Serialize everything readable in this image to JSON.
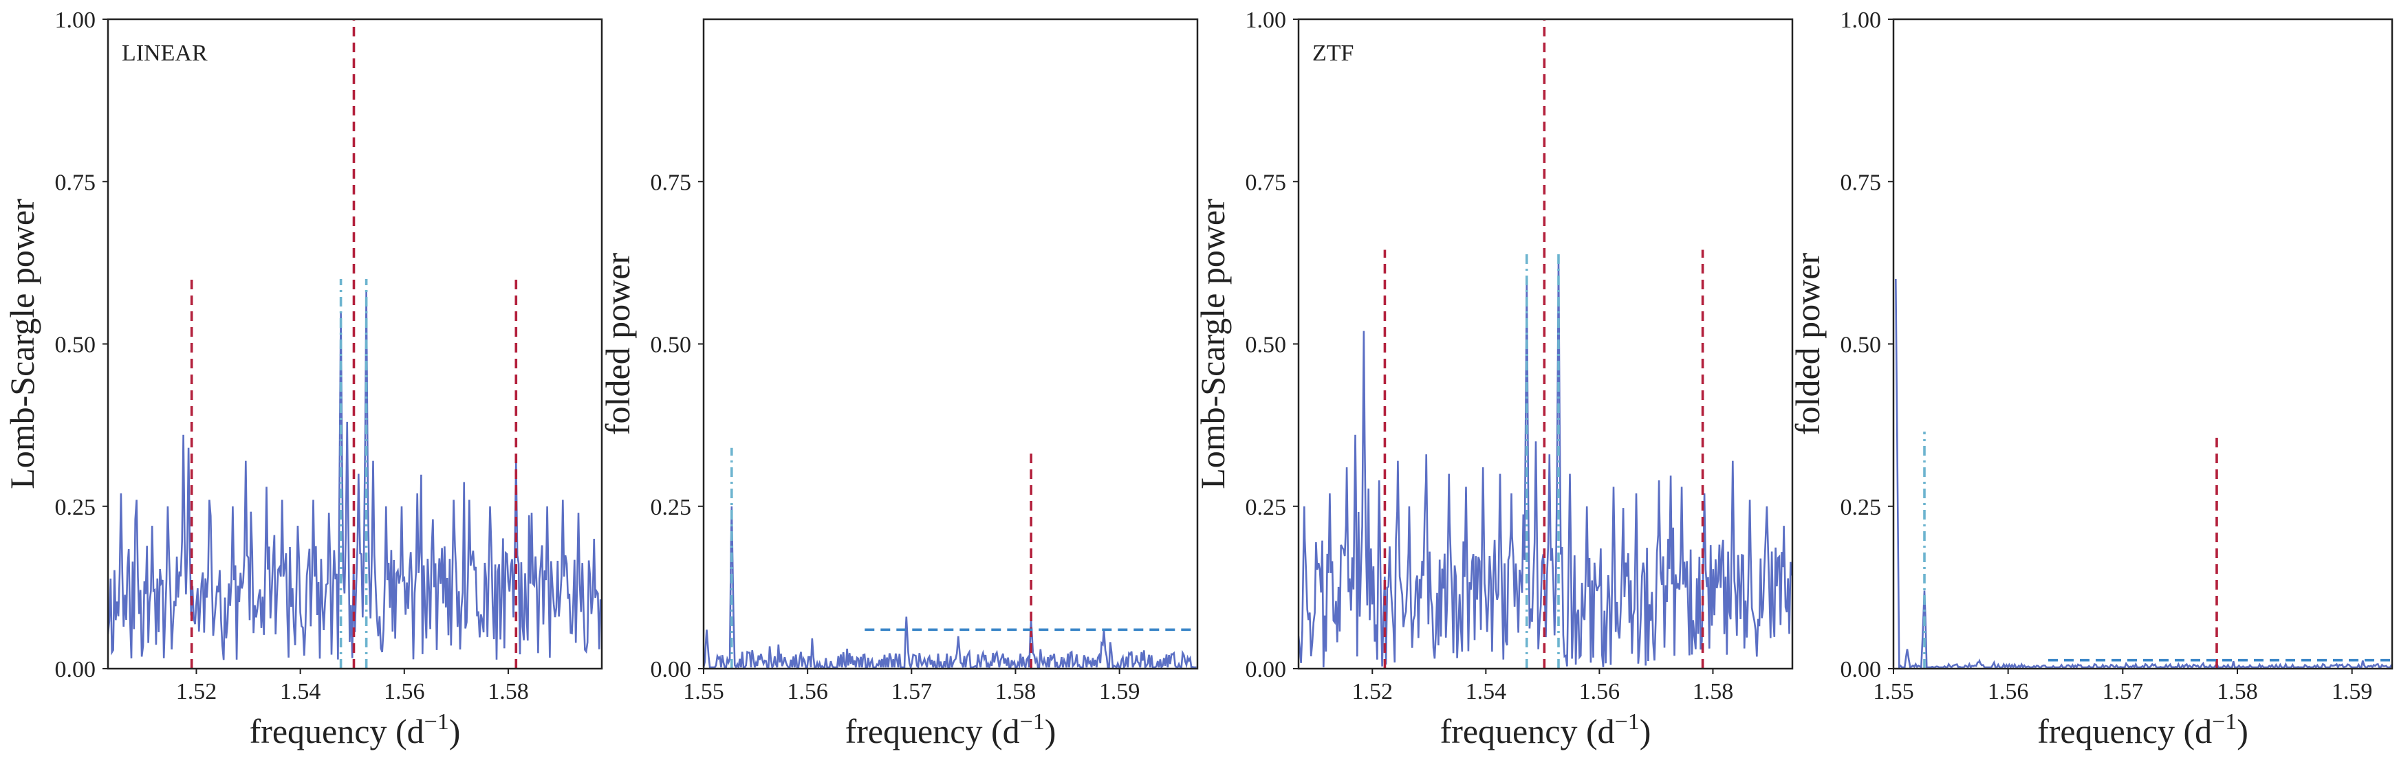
{
  "chart_data": [
    {
      "type": "line",
      "panel_label": "LINEAR",
      "xlabel": "frequency (d",
      "xlabel_sup": "−1",
      "xlabel_tail": ")",
      "ylabel": "Lomb-Scargle power",
      "xlim": [
        1.503,
        1.598
      ],
      "ylim": [
        0,
        1
      ],
      "xticks": [
        1.52,
        1.54,
        1.56,
        1.58
      ],
      "xtick_labels": [
        "1.52",
        "1.54",
        "1.56",
        "1.58"
      ],
      "yticks": [
        0.0,
        0.25,
        0.5,
        0.75,
        1.0
      ],
      "ytick_labels": [
        "0.00",
        "0.25",
        "0.50",
        "0.75",
        "1.00"
      ],
      "series": [
        {
          "style": "solid",
          "color": "#5b6fc4",
          "noise": {
            "from": 1.503,
            "to": 1.598,
            "step": 0.00025,
            "base": 0.1,
            "amp": 0.09,
            "seed": 11
          },
          "peaks": [
            {
              "x": 1.5055,
              "y": 0.27
            },
            {
              "x": 1.5085,
              "y": 0.26
            },
            {
              "x": 1.5115,
              "y": 0.22
            },
            {
              "x": 1.5145,
              "y": 0.25
            },
            {
              "x": 1.5175,
              "y": 0.36
            },
            {
              "x": 1.5185,
              "y": 0.34
            },
            {
              "x": 1.5225,
              "y": 0.26
            },
            {
              "x": 1.527,
              "y": 0.25
            },
            {
              "x": 1.5295,
              "y": 0.32
            },
            {
              "x": 1.5335,
              "y": 0.28
            },
            {
              "x": 1.5365,
              "y": 0.26
            },
            {
              "x": 1.5395,
              "y": 0.22
            },
            {
              "x": 1.5425,
              "y": 0.26
            },
            {
              "x": 1.5455,
              "y": 0.24
            },
            {
              "x": 1.5478,
              "y": 0.55
            },
            {
              "x": 1.549,
              "y": 0.38
            },
            {
              "x": 1.5512,
              "y": 0.3
            },
            {
              "x": 1.5527,
              "y": 0.58
            },
            {
              "x": 1.554,
              "y": 0.32
            },
            {
              "x": 1.5565,
              "y": 0.25
            },
            {
              "x": 1.5595,
              "y": 0.25
            },
            {
              "x": 1.5625,
              "y": 0.27
            },
            {
              "x": 1.5655,
              "y": 0.23
            },
            {
              "x": 1.5695,
              "y": 0.26
            },
            {
              "x": 1.5725,
              "y": 0.26
            },
            {
              "x": 1.5765,
              "y": 0.25
            },
            {
              "x": 1.5815,
              "y": 0.32
            },
            {
              "x": 1.5845,
              "y": 0.24
            },
            {
              "x": 1.5875,
              "y": 0.25
            },
            {
              "x": 1.5905,
              "y": 0.26
            },
            {
              "x": 1.5935,
              "y": 0.24
            },
            {
              "x": 1.5965,
              "y": 0.2
            }
          ]
        }
      ],
      "vlines": [
        {
          "x": 1.5191,
          "y0": 0,
          "y1": 0.6,
          "color": "#b3203c",
          "dash": "dashed"
        },
        {
          "x": 1.5503,
          "y0": 0,
          "y1": 1.0,
          "color": "#b3203c",
          "dash": "dashed"
        },
        {
          "x": 1.5815,
          "y0": 0,
          "y1": 0.6,
          "color": "#b3203c",
          "dash": "dashed"
        },
        {
          "x": 1.5478,
          "y0": 0,
          "y1": 0.6,
          "color": "#6cb4cf",
          "dash": "dashdot"
        },
        {
          "x": 1.5527,
          "y0": 0,
          "y1": 0.6,
          "color": "#6cb4cf",
          "dash": "dashdot"
        }
      ],
      "hlines": []
    },
    {
      "type": "line",
      "panel_label": "",
      "xlabel": "frequency (d",
      "xlabel_sup": "−1",
      "xlabel_tail": ")",
      "ylabel": "folded power",
      "xlim": [
        1.55,
        1.5975
      ],
      "ylim": [
        0,
        1
      ],
      "xticks": [
        1.55,
        1.56,
        1.57,
        1.58,
        1.59
      ],
      "xtick_labels": [
        "1.55",
        "1.56",
        "1.57",
        "1.58",
        "1.59"
      ],
      "yticks": [
        0.0,
        0.25,
        0.5,
        0.75
      ],
      "ytick_labels": [
        "0.00",
        "0.25",
        "0.50",
        "0.75"
      ],
      "series": [
        {
          "style": "solid",
          "color": "#5b6fc4",
          "noise": {
            "from": 1.55,
            "to": 1.5975,
            "step": 0.00012,
            "base": 0.008,
            "amp": 0.018,
            "seed": 23
          },
          "peaks": [
            {
              "x": 1.5503,
              "y": 0.06
            },
            {
              "x": 1.5527,
              "y": 0.25
            },
            {
              "x": 1.5695,
              "y": 0.08
            },
            {
              "x": 1.5815,
              "y": 0.075
            },
            {
              "x": 1.5745,
              "y": 0.05
            },
            {
              "x": 1.5885,
              "y": 0.06
            }
          ]
        }
      ],
      "vlines": [
        {
          "x": 1.5527,
          "y0": 0,
          "y1": 0.34,
          "color": "#6cb4cf",
          "dash": "dashdot"
        },
        {
          "x": 1.5815,
          "y0": 0,
          "y1": 0.34,
          "color": "#b3203c",
          "dash": "dashed"
        }
      ],
      "hlines": [
        {
          "y": 0.06,
          "x0": 1.5655,
          "x1": 1.5975,
          "color": "#3a86c8",
          "dash": "dashed"
        }
      ]
    },
    {
      "type": "line",
      "panel_label": "ZTF",
      "xlabel": "frequency (d",
      "xlabel_sup": "−1",
      "xlabel_tail": ")",
      "ylabel": "Lomb-Scargle power",
      "xlim": [
        1.507,
        1.594
      ],
      "ylim": [
        0,
        1
      ],
      "xticks": [
        1.52,
        1.54,
        1.56,
        1.58
      ],
      "xtick_labels": [
        "1.52",
        "1.54",
        "1.56",
        "1.58"
      ],
      "yticks": [
        0.0,
        0.25,
        0.5,
        0.75,
        1.0
      ],
      "ytick_labels": [
        "0.00",
        "0.25",
        "0.50",
        "0.75",
        "1.00"
      ],
      "series": [
        {
          "style": "solid",
          "color": "#5b6fc4",
          "noise": {
            "from": 1.507,
            "to": 1.594,
            "step": 0.00022,
            "base": 0.1,
            "amp": 0.1,
            "seed": 37
          },
          "peaks": [
            {
              "x": 1.508,
              "y": 0.25
            },
            {
              "x": 1.5125,
              "y": 0.27
            },
            {
              "x": 1.5155,
              "y": 0.31
            },
            {
              "x": 1.517,
              "y": 0.36
            },
            {
              "x": 1.5185,
              "y": 0.52
            },
            {
              "x": 1.5212,
              "y": 0.29
            },
            {
              "x": 1.5245,
              "y": 0.32
            },
            {
              "x": 1.5265,
              "y": 0.25
            },
            {
              "x": 1.5295,
              "y": 0.33
            },
            {
              "x": 1.5335,
              "y": 0.3
            },
            {
              "x": 1.5365,
              "y": 0.28
            },
            {
              "x": 1.5395,
              "y": 0.31
            },
            {
              "x": 1.5425,
              "y": 0.3
            },
            {
              "x": 1.5445,
              "y": 0.27
            },
            {
              "x": 1.5472,
              "y": 0.6
            },
            {
              "x": 1.5488,
              "y": 0.35
            },
            {
              "x": 1.5512,
              "y": 0.33
            },
            {
              "x": 1.5528,
              "y": 0.63
            },
            {
              "x": 1.5548,
              "y": 0.3
            },
            {
              "x": 1.5578,
              "y": 0.25
            },
            {
              "x": 1.5625,
              "y": 0.28
            },
            {
              "x": 1.5665,
              "y": 0.27
            },
            {
              "x": 1.5705,
              "y": 0.29
            },
            {
              "x": 1.5745,
              "y": 0.28
            },
            {
              "x": 1.5785,
              "y": 0.27
            },
            {
              "x": 1.5835,
              "y": 0.32
            },
            {
              "x": 1.5865,
              "y": 0.26
            },
            {
              "x": 1.5895,
              "y": 0.25
            },
            {
              "x": 1.5925,
              "y": 0.22
            }
          ]
        }
      ],
      "vlines": [
        {
          "x": 1.5222,
          "y0": 0,
          "y1": 0.645,
          "color": "#b3203c",
          "dash": "dashed"
        },
        {
          "x": 1.5503,
          "y0": 0,
          "y1": 1.0,
          "color": "#b3203c",
          "dash": "dashed"
        },
        {
          "x": 1.5782,
          "y0": 0,
          "y1": 0.645,
          "color": "#b3203c",
          "dash": "dashed"
        },
        {
          "x": 1.5472,
          "y0": 0,
          "y1": 0.645,
          "color": "#6cb4cf",
          "dash": "dashdot"
        },
        {
          "x": 1.5528,
          "y0": 0,
          "y1": 0.645,
          "color": "#6cb4cf",
          "dash": "dashdot"
        }
      ],
      "hlines": []
    },
    {
      "type": "line",
      "panel_label": "",
      "xlabel": "frequency (d",
      "xlabel_sup": "−1",
      "xlabel_tail": ")",
      "ylabel": "folded power",
      "xlim": [
        1.55,
        1.5935
      ],
      "ylim": [
        0,
        1
      ],
      "xticks": [
        1.55,
        1.56,
        1.57,
        1.58,
        1.59
      ],
      "xtick_labels": [
        "1.55",
        "1.56",
        "1.57",
        "1.58",
        "1.59"
      ],
      "yticks": [
        0.0,
        0.25,
        0.5,
        0.75,
        1.0
      ],
      "ytick_labels": [
        "0.00",
        "0.25",
        "0.50",
        "0.75",
        "1.00"
      ],
      "series": [
        {
          "style": "solid",
          "color": "#5b6fc4",
          "noise": {
            "from": 1.5505,
            "to": 1.5935,
            "step": 0.00012,
            "base": 0.002,
            "amp": 0.005,
            "seed": 51
          },
          "peaks": [
            {
              "x": 1.5502,
              "y": 0.6
            },
            {
              "x": 1.5512,
              "y": 0.03
            },
            {
              "x": 1.5527,
              "y": 0.12
            },
            {
              "x": 1.5575,
              "y": 0.012
            }
          ]
        }
      ],
      "vlines": [
        {
          "x": 1.5527,
          "y0": 0,
          "y1": 0.365,
          "color": "#6cb4cf",
          "dash": "dashdot"
        },
        {
          "x": 1.5782,
          "y0": 0,
          "y1": 0.365,
          "color": "#b3203c",
          "dash": "dashed"
        }
      ],
      "hlines": [
        {
          "y": 0.013,
          "x0": 1.5635,
          "x1": 1.5935,
          "color": "#3a86c8",
          "dash": "dashed"
        }
      ]
    }
  ]
}
